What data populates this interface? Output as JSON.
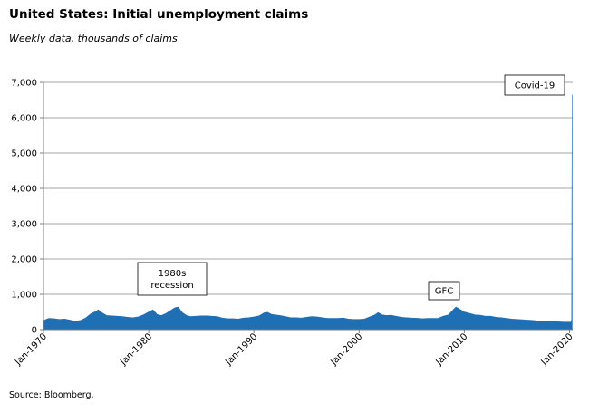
{
  "header": {
    "title": "United States: Initial unemployment claims",
    "subtitle": "Weekly data, thousands of claims"
  },
  "footer": {
    "source": "Source: Bloomberg."
  },
  "colors": {
    "series": "#1f6fb5",
    "grid": "#a6a6a6",
    "axis": "#7f7f7f"
  },
  "chart_data": {
    "type": "area",
    "title": "United States: Initial unemployment claims",
    "subtitle": "Weekly data, thousands of claims",
    "xlabel": "",
    "ylabel": "",
    "ylim": [
      0,
      7000
    ],
    "xlim": [
      1970.0,
      2020.3
    ],
    "grid": "horizontal",
    "y_ticks": [
      {
        "value": 0,
        "label": "0"
      },
      {
        "value": 1000,
        "label": "1,000"
      },
      {
        "value": 2000,
        "label": "2,000"
      },
      {
        "value": 3000,
        "label": "3,000"
      },
      {
        "value": 4000,
        "label": "4,000"
      },
      {
        "value": 5000,
        "label": "5,000"
      },
      {
        "value": 6000,
        "label": "6,000"
      },
      {
        "value": 7000,
        "label": "7,000"
      }
    ],
    "x_ticks": [
      {
        "value": 1970,
        "label": "Jan-1970"
      },
      {
        "value": 1980,
        "label": "Jan-1980"
      },
      {
        "value": 1990,
        "label": "Jan-1990"
      },
      {
        "value": 2000,
        "label": "Jan-2000"
      },
      {
        "value": 2010,
        "label": "Jan-2010"
      },
      {
        "value": 2020,
        "label": "Jan-2020"
      }
    ],
    "series": [
      {
        "x": [
          1970.0,
          1970.5,
          1971.0,
          1971.5,
          1972.0,
          1972.5,
          1973.0,
          1973.5,
          1974.0,
          1974.5,
          1975.0,
          1975.2,
          1975.6,
          1976.0,
          1976.5,
          1977.0,
          1977.5,
          1978.0,
          1978.5,
          1979.0,
          1979.5,
          1980.0,
          1980.4,
          1980.8,
          1981.2,
          1981.6,
          1982.0,
          1982.5,
          1982.8,
          1983.2,
          1983.6,
          1984.0,
          1984.5,
          1985.0,
          1985.5,
          1986.0,
          1986.5,
          1987.0,
          1987.5,
          1988.0,
          1988.5,
          1989.0,
          1989.5,
          1990.0,
          1990.5,
          1991.0,
          1991.3,
          1991.7,
          1992.0,
          1992.5,
          1993.0,
          1993.5,
          1994.0,
          1994.5,
          1995.0,
          1995.5,
          1996.0,
          1996.5,
          1997.0,
          1997.5,
          1998.0,
          1998.5,
          1999.0,
          1999.5,
          2000.0,
          2000.5,
          2001.0,
          2001.5,
          2001.8,
          2002.2,
          2002.6,
          2003.0,
          2003.5,
          2004.0,
          2004.5,
          2005.0,
          2005.7,
          2006.0,
          2006.5,
          2007.0,
          2007.5,
          2008.0,
          2008.5,
          2009.0,
          2009.2,
          2009.6,
          2010.0,
          2010.5,
          2011.0,
          2011.5,
          2012.0,
          2012.5,
          2013.0,
          2013.5,
          2014.0,
          2014.5,
          2015.0,
          2015.5,
          2016.0,
          2016.5,
          2017.0,
          2017.5,
          2018.0,
          2018.5,
          2019.0,
          2019.5,
          2020.0,
          2020.15,
          2020.2,
          2020.22,
          2020.25
        ],
        "values": [
          260,
          320,
          310,
          290,
          300,
          270,
          240,
          260,
          330,
          450,
          520,
          560,
          470,
          400,
          390,
          380,
          370,
          350,
          340,
          360,
          420,
          500,
          560,
          430,
          400,
          450,
          530,
          620,
          640,
          480,
          400,
          370,
          380,
          390,
          390,
          380,
          370,
          330,
          310,
          310,
          300,
          330,
          340,
          360,
          390,
          480,
          490,
          430,
          420,
          400,
          370,
          340,
          340,
          330,
          350,
          370,
          360,
          340,
          320,
          320,
          320,
          330,
          300,
          290,
          290,
          300,
          360,
          420,
          480,
          420,
          400,
          410,
          380,
          350,
          340,
          330,
          320,
          310,
          320,
          320,
          320,
          380,
          420,
          580,
          640,
          570,
          500,
          460,
          420,
          410,
          380,
          380,
          350,
          340,
          320,
          300,
          290,
          280,
          270,
          260,
          250,
          240,
          230,
          225,
          220,
          215,
          215,
          215,
          280,
          3300,
          6650
        ]
      }
    ],
    "annotations": [
      {
        "label_lines": [
          "1980s",
          "recession"
        ],
        "x": 1982.3,
        "y": 650
      },
      {
        "label_lines": [
          "GFC"
        ],
        "x": 2009.3,
        "y": 650
      },
      {
        "label_lines": [
          "Covid-19"
        ],
        "x": 2020.2,
        "y": 6650
      }
    ]
  }
}
